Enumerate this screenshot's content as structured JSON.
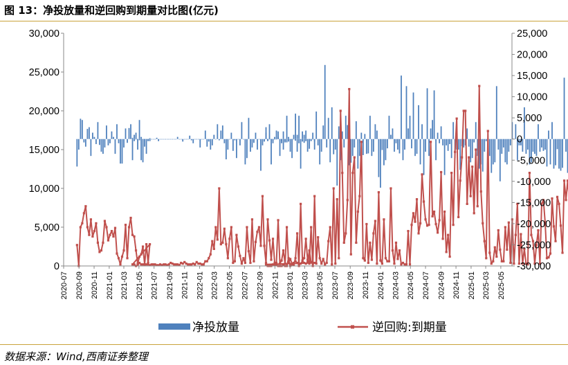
{
  "header": {
    "title": "图 13：净投放量和逆回购到期量对比图(亿元)"
  },
  "footer": {
    "source": "数据来源：Wind,西南证券整理"
  },
  "colors": {
    "bars": "#4f81bd",
    "line": "#c0504d",
    "accent_rule": "#c9a23a"
  },
  "chart_data": {
    "type": "bar+line",
    "title": "",
    "legend_position": "bottom",
    "grid": false,
    "x_tick_labels": [
      "2020-07",
      "2020-09",
      "2020-11",
      "2021-01",
      "2021-03",
      "2021-05",
      "2021-07",
      "2021-09",
      "2021-11",
      "2022-01",
      "2022-03",
      "2022-05",
      "2022-07",
      "2022-09",
      "2022-11",
      "2023-01",
      "2023-03",
      "2023-05",
      "2023-07",
      "2023-09",
      "2023-11",
      "2024-01",
      "2024-03",
      "2024-05",
      "2024-07",
      "2024-09",
      "2024-11",
      "2025-01",
      "2025-03",
      "2025-05"
    ],
    "y_left": {
      "ylim": [
        0,
        30000
      ],
      "ticks": [
        "0",
        "5,000",
        "10,000",
        "15,000",
        "20,000",
        "25,000",
        "30,000"
      ]
    },
    "y_right": {
      "ylim": [
        -30000,
        25000
      ],
      "ticks": [
        "-30,000",
        "-25,000",
        "-20,000",
        "-15,000",
        "-10,000",
        "-5,000",
        "0",
        "5,000",
        "10,000",
        "15,000",
        "20,000",
        "25,000"
      ]
    },
    "series": [
      {
        "name": "净投放量",
        "type": "bar",
        "axis": "right",
        "segments": [
          {
            "start": "2020-08-24",
            "values": [
              -6500,
              -2500,
              4800,
              4500,
              -800,
              -1800,
              2400,
              2800,
              -4000,
              1500,
              500,
              -1200,
              4000,
              -1400,
              -3000,
              -3500,
              -2000,
              3200,
              -1500,
              -1000,
              1800,
              500,
              -3500,
              3500,
              -1000,
              -5800,
              -5800,
              -2000,
              2500,
              -900,
              2600,
              3500,
              -5000,
              1000,
              1500,
              -2500,
              4500,
              -5000,
              -5500,
              -1800,
              -3500,
              -500,
              -500
            ]
          },
          {
            "start": "2021-04-05",
            "values": [
              300,
              -500,
              0,
              0,
              -300,
              500,
              0,
              0,
              0,
              -300,
              200,
              0,
              0,
              0,
              300,
              -500,
              0,
              0,
              0,
              0,
              0,
              0,
              0,
              0,
              0,
              0,
              500,
              0,
              0,
              -600,
              0,
              0,
              0,
              800,
              -300,
              -1000,
              0,
              0,
              0,
              -2000,
              0,
              0,
              2000,
              -1800,
              -600,
              -2500,
              -1500,
              1000,
              0,
              3500,
              -300,
              2000,
              3200,
              -1000,
              -4800,
              -2500,
              0,
              1500,
              -2800,
              -300,
              -4500,
              0,
              -1500,
              4000,
              0,
              -6000,
              -4500,
              5000,
              -3000,
              -2000,
              -900,
              1500,
              -2500,
              0,
              -7500,
              -1500,
              -600,
              1500,
              -500,
              3500,
              -6000,
              -1000,
              500,
              2000,
              1800,
              -4000,
              -1000,
              1800,
              -800,
              5500,
              500,
              -3000,
              -4500,
              1000,
              -400,
              1000,
              -1000,
              0,
              -600,
              1000,
              -500,
              -400,
              0,
              -300,
              0,
              -600
            ]
          },
          {
            "start": "2022-09-26",
            "values": [
              2800,
              -300,
              0,
              0,
              -300,
              0,
              -100,
              500,
              0,
              -400,
              -2500,
              -500,
              -800,
              -600,
              -200,
              0,
              0,
              6000,
              -3000,
              5500,
              -7000,
              1800,
              -900,
              2000,
              -3000,
              -2300,
              -500,
              1500,
              -2500,
              6500,
              -1500,
              -6000,
              -3000,
              3200,
              17500,
              -2000,
              5000,
              -5500,
              7500,
              -3600,
              -2500,
              -11000,
              3000,
              -5000,
              1800,
              -2000,
              5500,
              3300,
              -6200,
              -5600,
              -4000,
              -2000,
              4200,
              -7000,
              -4000,
              1500,
              -3800,
              1200,
              -3500,
              -3400,
              5500,
              -4000,
              -3000,
              3500,
              2000,
              -9000,
              -11500,
              -2600,
              -6200,
              -5000,
              -2200,
              5500,
              1000,
              2500,
              -3000,
              -1000,
              -2500,
              -3400,
              15000,
              -5000,
              -2500,
              12500,
              2500,
              5500,
              -2200,
              11000,
              -4000,
              -3500,
              8000,
              -6000,
              3500,
              -8500,
              -3000,
              12000,
              -4000,
              2500,
              4500,
              11500,
              -5000,
              1500,
              -1000,
              3000,
              -1500,
              -8500,
              -1500,
              -2800,
              -1200,
              -4500,
              4000,
              -4500,
              -2500,
              -2500,
              -7300,
              -1700,
              -2000,
              -1500,
              2500,
              -1800,
              -5500,
              -4500,
              -800,
              4000,
              -4000,
              -7000,
              -6000,
              -7700,
              -3000,
              -500,
              -2000,
              -4000,
              -8000,
              -6000,
              -5500,
              12500,
              -2500,
              -10000,
              -3500,
              -2000,
              -5500,
              -6000,
              -3000,
              -1500,
              4000,
              0,
              3500,
              -5000,
              -1500,
              -1500,
              -3000,
              7500,
              -3500,
              -2500,
              -6000,
              -5500,
              -3000,
              -3500,
              -4000,
              3500,
              -3000,
              -2000,
              -2800,
              -2500,
              -6500,
              2000,
              -6000,
              4000,
              -7000,
              -6200,
              -2400,
              -7000,
              -7500,
              -6800,
              14500,
              -3000,
              -8000,
              -6000,
              4500,
              -10000,
              -6000,
              -4500,
              3000,
              -1500,
              -4000,
              -6500,
              -6000,
              -3500,
              4000,
              -3000,
              -6000,
              -5000,
              2500,
              -4500,
              -3000,
              7500
            ]
          }
        ]
      },
      {
        "name": "逆回购:到期量",
        "type": "line",
        "axis": "left",
        "segments": [
          {
            "start": "2020-08-24",
            "values": [
              2700,
              0,
              5000,
              5500,
              6800,
              7700,
              5000,
              4000,
              6000,
              3800,
              4500,
              5500,
              3000,
              1800,
              2000,
              3000,
              5800,
              5000,
              3300,
              4000,
              4500,
              3800,
              4900,
              1600,
              1000,
              200,
              1200,
              2000,
              5300,
              1000,
              5000,
              6200,
              4000,
              3800,
              2000,
              300,
              1200,
              1500,
              2500,
              200,
              2800,
              400,
              2800
            ]
          },
          {
            "start": "2021-04-05",
            "values": [
              200,
              200,
              0,
              100,
              400,
              200,
              200,
              200,
              200,
              200,
              100,
              200,
              200,
              200,
              100,
              100,
              200,
              100,
              200,
              200,
              100,
              200,
              400,
              300,
              200,
              200,
              200,
              100,
              400,
              300,
              500,
              300,
              200,
              200,
              200,
              300,
              200,
              500,
              300,
              300,
              200,
              200,
              600,
              600,
              1000,
              1500,
              3200,
              2200,
              5000,
              3400,
              10000,
              2800,
              3000,
              4800,
              2800,
              1000,
              3500,
              5000,
              400,
              600,
              4000,
              2500,
              1300,
              300,
              1000,
              400,
              5000,
              1900,
              400,
              6000,
              600,
              3100,
              4400,
              5000,
              2600,
              9000,
              2600,
              400,
              6000,
              3300,
              800,
              3500,
              400,
              400,
              5900,
              300,
              700,
              2000,
              300,
              5000,
              400,
              900,
              300,
              400,
              600,
              400,
              200,
              300,
              600,
              400,
              300,
              500,
              2000,
              500,
              300,
              400
            ]
          },
          {
            "start": "2022-09-26",
            "values": [
              200,
              0,
              0,
              0,
              200,
              100,
              100,
              0,
              0,
              0,
              100,
              0,
              0,
              1000,
              0,
              200,
              100,
              1000,
              4200,
              0,
              8000,
              700,
              1000,
              3500,
              800,
              300,
              5000,
              0,
              9000,
              300,
              3700,
              1000,
              300,
              900,
              200,
              400,
              3200,
              5000,
              200,
              10000,
              300,
              8600,
              1000,
              20000,
              12000,
              3000,
              4200,
              8500,
              22800,
              1500,
              12000,
              14000,
              3000,
              7000,
              9000,
              16000,
              1000,
              700,
              5400,
              400,
              3000,
              800,
              4200,
              5800,
              300,
              9500,
              700,
              300,
              6000,
              1000,
              600,
              600,
              10000,
              2000,
              300,
              3000,
              900,
              2000,
              200,
              400,
              200,
              200,
              4500,
              200,
              5300,
              6800,
              5700,
              8600,
              4200,
              5500,
              11800,
              8300,
              6000,
              5200,
              5300,
              16000,
              6400,
              7000,
              5400,
              4300,
              5900,
              12100,
              3500,
              7000,
              1800,
              4000,
              1200,
              12000,
              5300,
              14700,
              19000,
              6300,
              11000,
              14000,
              20000,
              20000,
              8000,
              14000,
              9000,
              12800,
              6800,
              15000,
              7700,
              23200,
              9600,
              5500,
              3200,
              1000,
              17400,
              1700,
              300,
              600,
              2400,
              1200,
              4600,
              2100,
              600,
              600,
              5000,
              2100,
              5600,
              400,
              6000,
              300,
              4000,
              8000,
              300,
              4100,
              300,
              2200,
              300,
              200,
              12000,
              4000,
              3200,
              300,
              2700,
              4600,
              300,
              8000,
              8500,
              5600,
              1000,
              1100,
              1600,
              8700,
              5100,
              3200,
              8900,
              8000,
              5200,
              1700,
              11000,
              8500,
              11000,
              8400,
              10000,
              1800,
              8100,
              400,
              17000,
              1700,
              8500,
              11000,
              8800,
              11300,
              3000,
              9000,
              12000,
              10300,
              16000,
              2000,
              9300,
              6000,
              5200,
              5600,
              8900,
              7300,
              5000,
              11000,
              7700,
              15000,
              2200,
              1800,
              3200,
              2400,
              6700,
              14200
            ]
          }
        ]
      }
    ]
  },
  "legend": [
    {
      "label": "净投放量"
    },
    {
      "label": "逆回购:到期量"
    }
  ]
}
